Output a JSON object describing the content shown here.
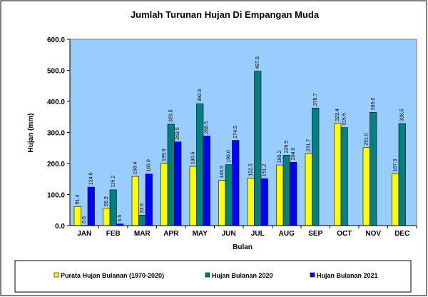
{
  "chart_data": {
    "type": "bar",
    "title": "Jumlah Turunan Hujan Di Empangan Muda",
    "xlabel": "Bulan",
    "ylabel": "Hujan (mm)",
    "ylim": [
      0,
      600
    ],
    "yticks": [
      "0.0",
      "100.0",
      "200.0",
      "300.0",
      "400.0",
      "500.0",
      "600.0"
    ],
    "grid": false,
    "legend_position": "bottom",
    "plot_background": "#99ccff",
    "categories": [
      "JAN",
      "FEB",
      "MAR",
      "APR",
      "MAY",
      "JUN",
      "JUL",
      "AUG",
      "SEP",
      "OCT",
      "NOV",
      "DEC"
    ],
    "series": [
      {
        "name": "Purata Hujan Bulanan (1970-2020)",
        "color": "#ffff00",
        "values": [
          61.4,
          55.9,
          158.4,
          199.9,
          190.5,
          145.5,
          152.5,
          195.2,
          231.7,
          329.4,
          251.0,
          167.3
        ],
        "labels": [
          "61.4",
          "55.9",
          "158.4",
          "199.9",
          "190.5",
          "145.5",
          "152.5",
          "195.2",
          "231.7",
          "329.4",
          "251.0",
          "167.3"
        ]
      },
      {
        "name": "Hujan Bulanan 2020",
        "color": "#008080",
        "values": [
          0.5,
          115.2,
          33.5,
          326.5,
          392.5,
          196.0,
          497.5,
          226.5,
          378.7,
          315.5,
          365.0,
          328.5
        ],
        "labels": [
          "0.5",
          "115.2",
          "33.5",
          "326.5",
          "392.5",
          "196.0",
          "497.5",
          "226.5",
          "378.7",
          "315.5",
          "365.0",
          "328.5"
        ]
      },
      {
        "name": "Hujan Bulanan 2021",
        "color": "#0000ff",
        "values": [
          124.0,
          5.5,
          166.0,
          269.5,
          288.5,
          274.5,
          151.2,
          204.0,
          null,
          null,
          null,
          null
        ],
        "labels": [
          "124.0",
          "5.5",
          "166.0",
          "269.5",
          "288.5",
          "274.5",
          "151.2",
          "204.0",
          null,
          null,
          null,
          null
        ]
      }
    ]
  }
}
